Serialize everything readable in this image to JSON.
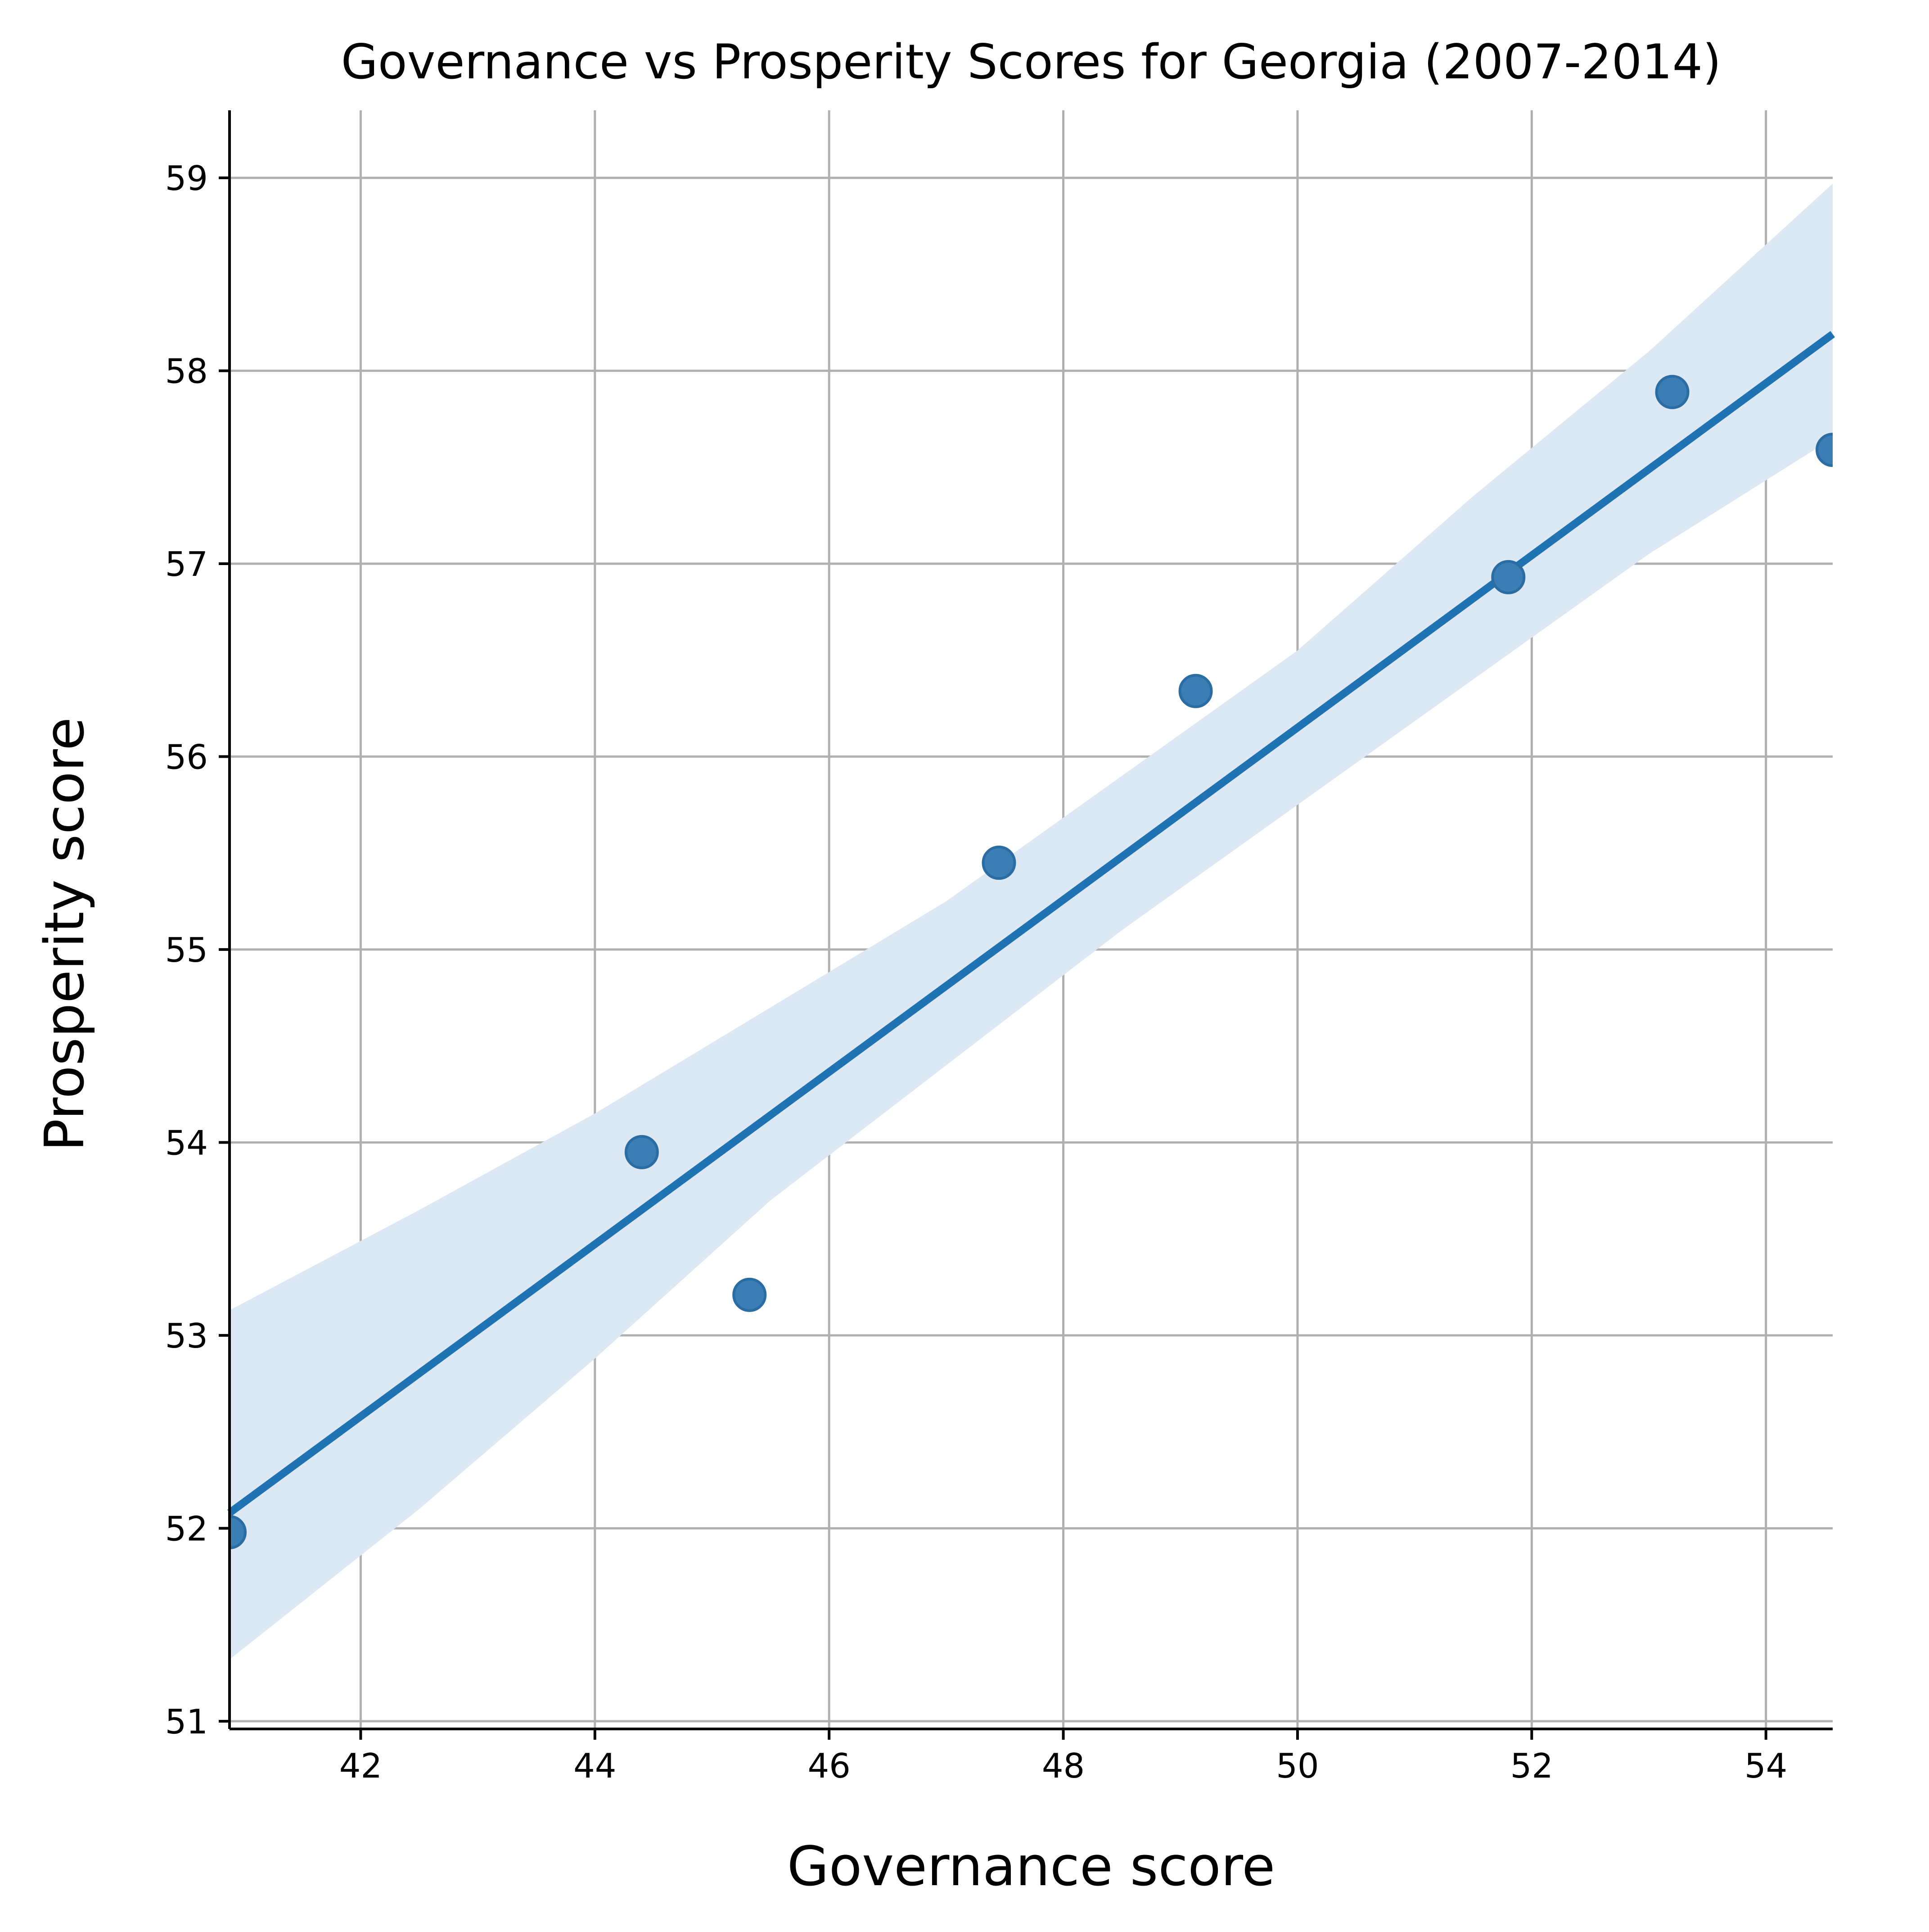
{
  "chart_data": {
    "type": "scatter",
    "title": "Governance vs Prosperity Scores for Georgia (2007-2014)",
    "xlabel": "Governance score",
    "ylabel": "Prosperity score",
    "xlim": [
      40.88,
      54.57
    ],
    "ylim": [
      50.96,
      59.35
    ],
    "xticks": [
      42,
      44,
      46,
      48,
      50,
      52,
      54
    ],
    "yticks": [
      51,
      52,
      53,
      54,
      55,
      56,
      57,
      58,
      59
    ],
    "grid": true,
    "series": [
      {
        "points": [
          {
            "x": 40.88,
            "y": 51.98
          },
          {
            "x": 44.4,
            "y": 53.95
          },
          {
            "x": 45.32,
            "y": 53.21
          },
          {
            "x": 47.45,
            "y": 55.45
          },
          {
            "x": 49.13,
            "y": 56.34
          },
          {
            "x": 51.8,
            "y": 56.93
          },
          {
            "x": 53.2,
            "y": 57.89
          },
          {
            "x": 54.57,
            "y": 57.59
          }
        ]
      }
    ],
    "regression": {
      "x": [
        40.88,
        54.57
      ],
      "y": [
        52.08,
        58.19
      ]
    },
    "confidence_band": {
      "x": [
        40.88,
        42.5,
        44.0,
        45.5,
        47.0,
        48.5,
        50.0,
        51.5,
        53.0,
        54.57
      ],
      "upper": [
        53.13,
        53.65,
        54.15,
        54.7,
        55.25,
        55.9,
        56.55,
        57.35,
        58.1,
        58.97
      ],
      "lower": [
        51.32,
        52.1,
        52.88,
        53.7,
        54.4,
        55.1,
        55.75,
        56.4,
        57.05,
        57.65
      ]
    },
    "colors": {
      "point": "#3b7db5",
      "point_edge": "#2b6ca3",
      "line": "#1f73b2",
      "band": "#dce8f3",
      "grid": "#b0b0b0",
      "axis": "#000000"
    }
  }
}
